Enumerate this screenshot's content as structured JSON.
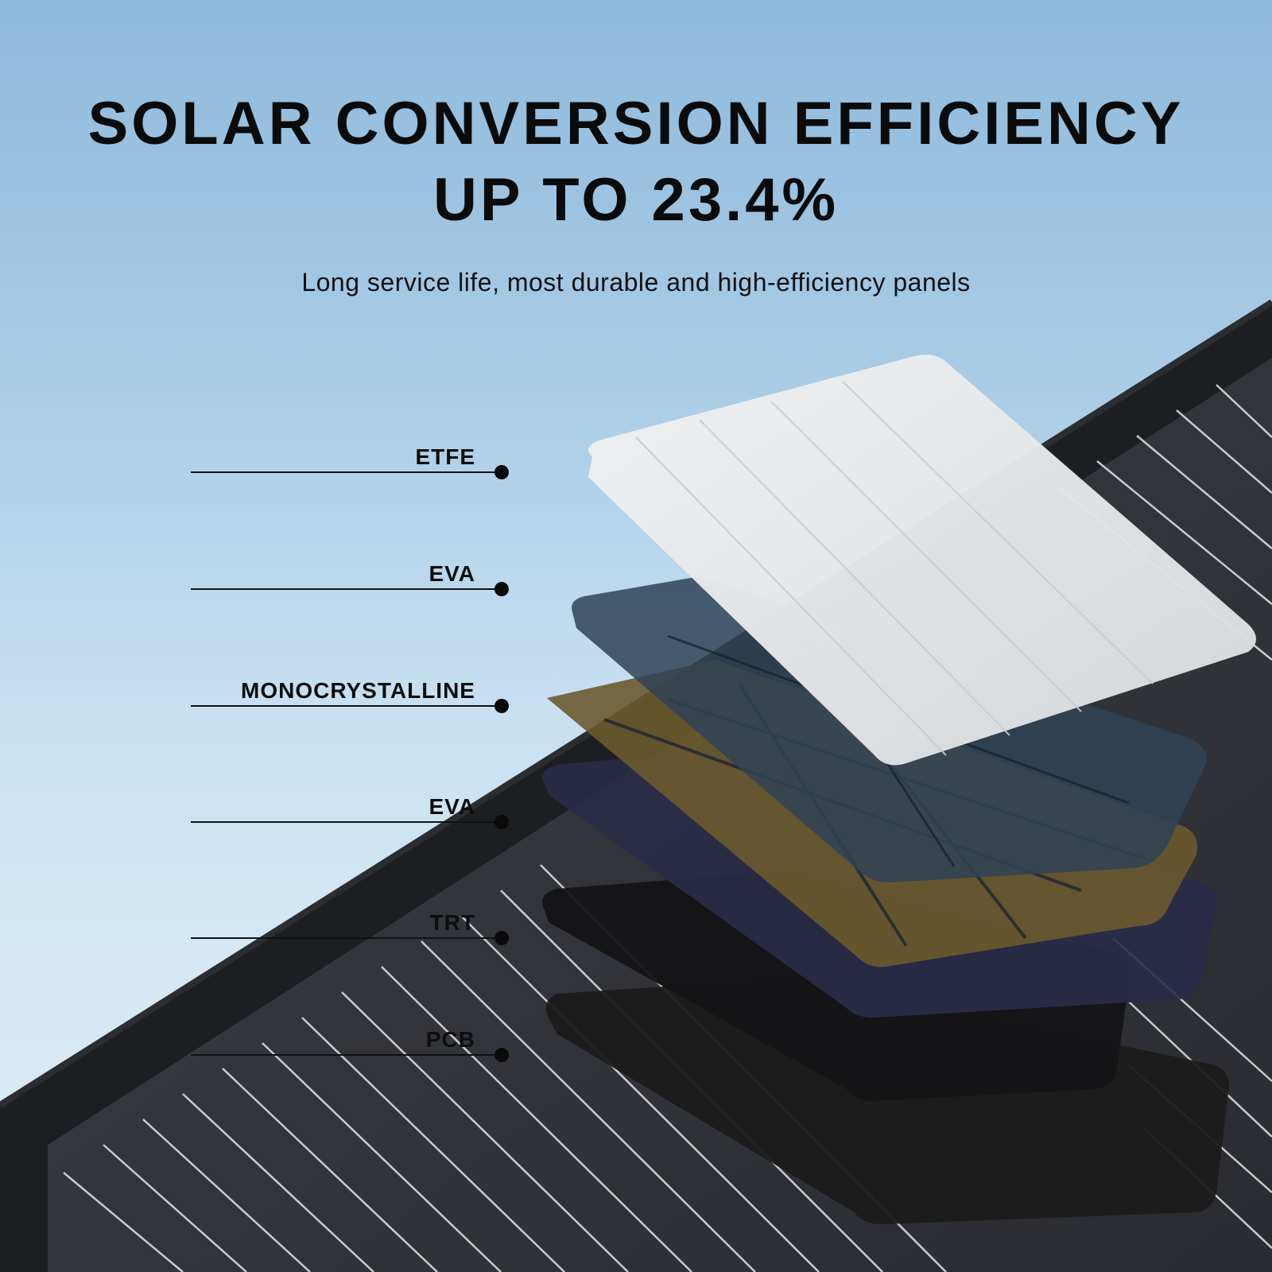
{
  "headline": {
    "line1": "SOLAR CONVERSION EFFICIENCY",
    "line2": "UP TO 23.4%"
  },
  "subheadline": "Long service life, most durable and high-efficiency panels",
  "layers": [
    {
      "label": "ETFE"
    },
    {
      "label": "EVA"
    },
    {
      "label": "MONOCRYSTALLINE"
    },
    {
      "label": "EVA"
    },
    {
      "label": "TRT"
    },
    {
      "label": "PCB"
    }
  ],
  "colors": {
    "sky_top": "#8fb9dc",
    "sky_bottom": "#dbeaf6",
    "panel_dark": "#1f2124",
    "etfe_layer": "#e6e8ea",
    "eva_layer": "#41576b",
    "mono_layer": "#7a6a3a",
    "trt_layer": "#1b1c2e",
    "pcb_layer": "#1c1c1c"
  }
}
